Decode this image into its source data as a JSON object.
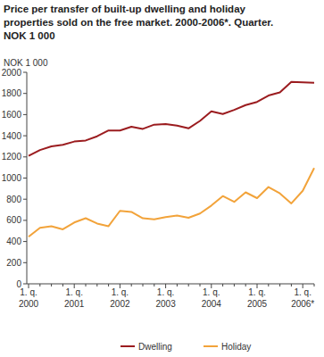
{
  "chart_data": {
    "type": "line",
    "title": "Price per transfer of built-up dwelling and holiday properties sold on the free market. 2000-2006*. Quarter. NOK 1 000",
    "y_label": "NOK 1 000",
    "categories": [
      "1. q. 2000",
      null,
      null,
      null,
      "1. q. 2001",
      null,
      null,
      null,
      "1. q. 2002",
      null,
      null,
      null,
      "1. q. 2003",
      null,
      null,
      null,
      "1. q. 2004",
      null,
      null,
      null,
      "1. q. 2005",
      null,
      null,
      null,
      "1. q. 2006*",
      null
    ],
    "series": [
      {
        "name": "Dwelling",
        "color": "#9b1c1f",
        "values": [
          1210,
          1265,
          1300,
          1315,
          1345,
          1355,
          1395,
          1450,
          1450,
          1485,
          1465,
          1505,
          1510,
          1495,
          1470,
          1540,
          1630,
          1605,
          1645,
          1690,
          1720,
          1780,
          1810,
          1910,
          1905,
          1900
        ]
      },
      {
        "name": "Holiday",
        "color": "#f2a33a",
        "values": [
          445,
          530,
          545,
          515,
          580,
          620,
          570,
          545,
          690,
          680,
          620,
          610,
          630,
          645,
          625,
          665,
          740,
          830,
          775,
          865,
          810,
          915,
          855,
          760,
          880,
          1095
        ]
      }
    ],
    "ylim": [
      0,
      2000
    ],
    "yticks": [
      0,
      200,
      400,
      600,
      800,
      1000,
      1200,
      1400,
      1600,
      1800,
      2000
    ],
    "grid": false,
    "legend": "bottom"
  }
}
